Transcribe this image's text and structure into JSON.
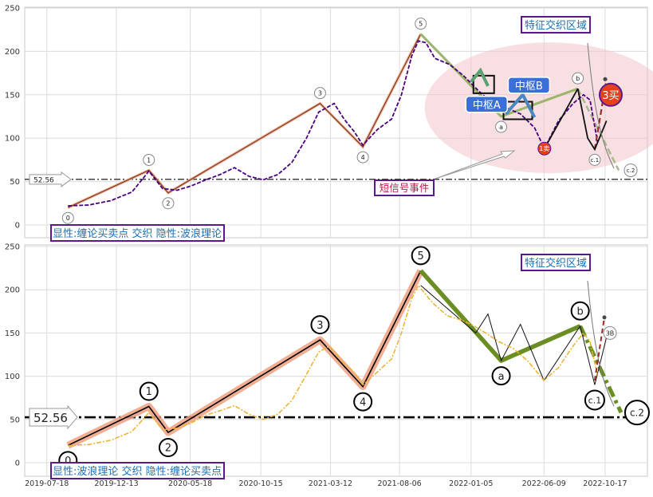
{
  "chart_data": [
    {
      "type": "line",
      "panel": "top",
      "title": "",
      "xlabel": "",
      "ylabel": "",
      "ylim": [
        -15,
        255
      ],
      "y_ticks": [
        0,
        50,
        100,
        150,
        200,
        250
      ],
      "grid": true,
      "x_domain": [
        "2019-06-01",
        "2023-01-15"
      ],
      "reference_line": {
        "value": 52.56,
        "label": "52.56"
      },
      "price_series": {
        "name": "",
        "color": "#4b0082",
        "points": [
          [
            "2019-09-01",
            22
          ],
          [
            "2019-10-15",
            23
          ],
          [
            "2019-12-01",
            28
          ],
          [
            "2020-01-15",
            38
          ],
          [
            "2020-02-20",
            62
          ],
          [
            "2020-03-20",
            42
          ],
          [
            "2020-04-20",
            40
          ],
          [
            "2020-05-20",
            45
          ],
          [
            "2020-06-20",
            52
          ],
          [
            "2020-07-20",
            58
          ],
          [
            "2020-08-20",
            66
          ],
          [
            "2020-09-20",
            56
          ],
          [
            "2020-10-20",
            52
          ],
          [
            "2020-11-20",
            58
          ],
          [
            "2020-12-20",
            72
          ],
          [
            "2021-01-20",
            100
          ],
          [
            "2021-02-15",
            130
          ],
          [
            "2021-03-20",
            140
          ],
          [
            "2021-04-10",
            122
          ],
          [
            "2021-05-01",
            108
          ],
          [
            "2021-05-20",
            92
          ],
          [
            "2021-06-20",
            110
          ],
          [
            "2021-07-20",
            122
          ],
          [
            "2021-08-10",
            150
          ],
          [
            "2021-09-01",
            195
          ],
          [
            "2021-09-15",
            212
          ],
          [
            "2021-10-01",
            210
          ],
          [
            "2021-10-20",
            192
          ],
          [
            "2021-11-20",
            185
          ],
          [
            "2021-12-20",
            172
          ],
          [
            "2022-01-20",
            155
          ],
          [
            "2022-02-20",
            140
          ],
          [
            "2022-03-20",
            135
          ],
          [
            "2022-04-20",
            128
          ],
          [
            "2022-05-20",
            112
          ],
          [
            "2022-06-10",
            88
          ],
          [
            "2022-07-10",
            120
          ],
          [
            "2022-08-10",
            140
          ],
          [
            "2022-09-01",
            150
          ],
          [
            "2022-09-15",
            144
          ],
          [
            "2022-10-01",
            95
          ]
        ]
      },
      "wave_points": [
        {
          "label": "0",
          "date": "2019-09-01",
          "value": 20
        },
        {
          "label": "1",
          "date": "2020-02-20",
          "value": 63
        },
        {
          "label": "2",
          "date": "2020-04-01",
          "value": 37
        },
        {
          "label": "3",
          "date": "2021-02-18",
          "value": 140
        },
        {
          "label": "4",
          "date": "2021-05-20",
          "value": 90
        },
        {
          "label": "5",
          "date": "2021-09-20",
          "value": 220
        },
        {
          "label": "a",
          "date": "2022-03-10",
          "value": 125
        },
        {
          "label": "1卖",
          "date": "2022-06-10",
          "value": 88
        },
        {
          "label": "b",
          "date": "2022-08-20",
          "value": 157
        },
        {
          "label": "c.1",
          "date": "2022-09-25",
          "value": 87
        },
        {
          "label": "c.2",
          "date": "2022-11-15",
          "value": 63
        }
      ],
      "annotations": [
        {
          "text": "特征交织区域",
          "kind": "box-label"
        },
        {
          "text": "中枢A",
          "kind": "zone"
        },
        {
          "text": "中枢B",
          "kind": "zone"
        },
        {
          "text": "3买",
          "kind": "signal"
        },
        {
          "text": "短信号事件",
          "kind": "box-label"
        },
        {
          "text": "显性:缠论买卖点 交织 隐性:波浪理论",
          "kind": "box-label"
        }
      ]
    },
    {
      "type": "line",
      "panel": "bottom",
      "title": "",
      "xlabel": "",
      "ylabel": "",
      "ylim": [
        -15,
        255
      ],
      "y_ticks": [
        0,
        50,
        100,
        150,
        200,
        250
      ],
      "x_ticks": [
        "2019-07-18",
        "2019-12-13",
        "2020-05-18",
        "2020-10-15",
        "2021-03-12",
        "2021-08-06",
        "2022-01-05",
        "2022-06-09",
        "2022-10-17"
      ],
      "grid": true,
      "x_domain": [
        "2019-06-01",
        "2023-01-15"
      ],
      "reference_line": {
        "value": 52.56,
        "label": "52.56"
      },
      "price_series": {
        "name": "",
        "color": "#f0b030",
        "points": [
          [
            "2019-09-01",
            20
          ],
          [
            "2019-10-15",
            21
          ],
          [
            "2019-12-01",
            26
          ],
          [
            "2020-01-15",
            36
          ],
          [
            "2020-02-20",
            58
          ],
          [
            "2020-03-20",
            38
          ],
          [
            "2020-04-20",
            40
          ],
          [
            "2020-05-20",
            46
          ],
          [
            "2020-06-20",
            55
          ],
          [
            "2020-07-20",
            60
          ],
          [
            "2020-08-20",
            66
          ],
          [
            "2020-09-20",
            56
          ],
          [
            "2020-10-20",
            50
          ],
          [
            "2020-11-20",
            56
          ],
          [
            "2020-12-20",
            72
          ],
          [
            "2021-01-20",
            102
          ],
          [
            "2021-02-15",
            128
          ],
          [
            "2021-03-10",
            135
          ],
          [
            "2021-04-10",
            115
          ],
          [
            "2021-05-01",
            105
          ],
          [
            "2021-05-20",
            90
          ],
          [
            "2021-06-20",
            105
          ],
          [
            "2021-07-20",
            120
          ],
          [
            "2021-08-10",
            150
          ],
          [
            "2021-09-01",
            190
          ],
          [
            "2021-09-15",
            205
          ],
          [
            "2021-10-15",
            185
          ],
          [
            "2021-11-15",
            170
          ],
          [
            "2021-12-15",
            165
          ],
          [
            "2022-01-05",
            160
          ],
          [
            "2022-02-05",
            150
          ],
          [
            "2022-03-05",
            140
          ],
          [
            "2022-04-05",
            132
          ],
          [
            "2022-05-05",
            118
          ],
          [
            "2022-06-09",
            95
          ],
          [
            "2022-07-10",
            110
          ],
          [
            "2022-08-10",
            135
          ],
          [
            "2022-09-01",
            150
          ],
          [
            "2022-09-15",
            140
          ],
          [
            "2022-10-01",
            100
          ]
        ]
      },
      "wave_points": [
        {
          "label": "0",
          "date": "2019-09-01",
          "value": 20
        },
        {
          "label": "1",
          "date": "2020-02-20",
          "value": 65
        },
        {
          "label": "2",
          "date": "2020-04-01",
          "value": 35
        },
        {
          "label": "3",
          "date": "2021-02-18",
          "value": 142
        },
        {
          "label": "4",
          "date": "2021-05-20",
          "value": 88
        },
        {
          "label": "5",
          "date": "2021-09-20",
          "value": 222
        },
        {
          "label": "a",
          "date": "2022-03-10",
          "value": 118
        },
        {
          "label": "b",
          "date": "2022-08-25",
          "value": 158
        },
        {
          "label": "c.1",
          "date": "2022-09-25",
          "value": 90
        },
        {
          "label": "c.2",
          "date": "2022-11-20",
          "value": 58
        }
      ],
      "annotations": [
        {
          "text": "特征交织区域",
          "kind": "box-label"
        },
        {
          "text": "3B",
          "kind": "signal"
        },
        {
          "text": "显性:波浪理论 交织 隐性:缠论买卖点",
          "kind": "box-label"
        }
      ]
    }
  ],
  "colors": {
    "purple_border": "#5b1a8c",
    "label_blue": "#1e6fb5",
    "zone_blue": "#3a6fd8",
    "olive_green": "#6b8e23",
    "salmon": "#f0a080",
    "red_signal": "#e8401c",
    "short_signal_red": "#c0184a",
    "pink_ellipse": "#f2c4c8"
  }
}
